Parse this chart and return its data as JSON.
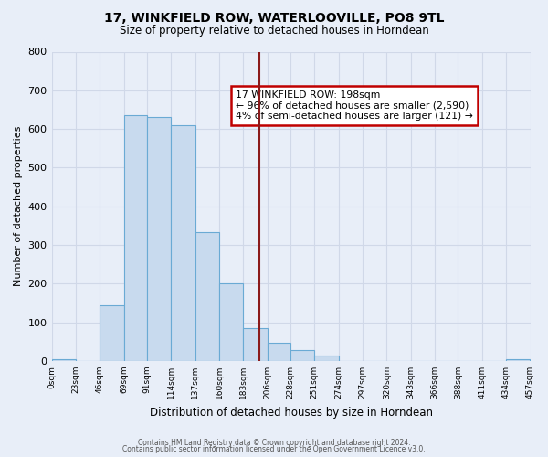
{
  "title": "17, WINKFIELD ROW, WATERLOOVILLE, PO8 9TL",
  "subtitle": "Size of property relative to detached houses in Horndean",
  "xlabel": "Distribution of detached houses by size in Horndean",
  "ylabel": "Number of detached properties",
  "bin_edges": [
    0,
    23,
    46,
    69,
    91,
    114,
    137,
    160,
    183,
    206,
    228,
    251,
    274,
    297,
    320,
    343,
    366,
    388,
    411,
    434,
    457
  ],
  "bin_heights": [
    5,
    0,
    143,
    635,
    632,
    609,
    333,
    201,
    84,
    47,
    28,
    13,
    0,
    0,
    0,
    0,
    0,
    0,
    0,
    4
  ],
  "bar_color": "#c8daee",
  "bar_edge_color": "#6aaad4",
  "property_line_x": 198,
  "property_line_color": "#8b1a1a",
  "annotation_text": "17 WINKFIELD ROW: 198sqm\n← 96% of detached houses are smaller (2,590)\n4% of semi-detached houses are larger (121) →",
  "annotation_box_color": "#ffffff",
  "annotation_box_edge_color": "#c00000",
  "ylim": [
    0,
    800
  ],
  "tick_labels": [
    "0sqm",
    "23sqm",
    "46sqm",
    "69sqm",
    "91sqm",
    "114sqm",
    "137sqm",
    "160sqm",
    "183sqm",
    "206sqm",
    "228sqm",
    "251sqm",
    "274sqm",
    "297sqm",
    "320sqm",
    "343sqm",
    "366sqm",
    "388sqm",
    "411sqm",
    "434sqm",
    "457sqm"
  ],
  "yticks": [
    0,
    100,
    200,
    300,
    400,
    500,
    600,
    700,
    800
  ],
  "footer1": "Contains HM Land Registry data © Crown copyright and database right 2024.",
  "footer2": "Contains public sector information licensed under the Open Government Licence v3.0.",
  "background_color": "#e8eef8",
  "grid_color": "#d0d8e8"
}
